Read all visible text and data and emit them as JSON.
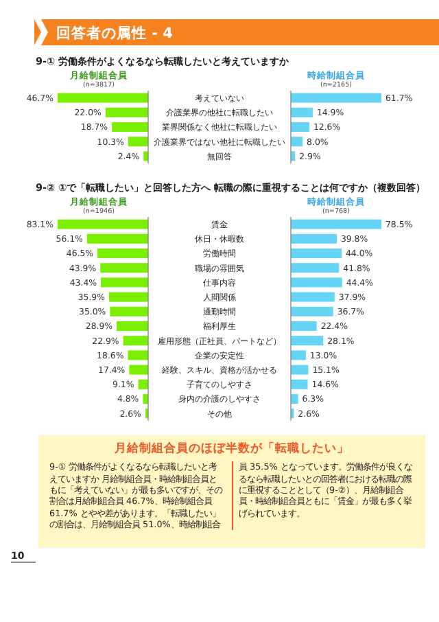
{
  "chart_data": [
    {
      "type": "other",
      "title": "回答者の属性 - 4"
    },
    {
      "type": "bar",
      "orientation": "horizontal",
      "title": "9-① 労働条件がよくなるなら転職したいと考えていますか",
      "categories": [
        "考えていない",
        "介護業界の他社に転職したい",
        "業界関係なく他社に転職したい",
        "介護業界ではない他社に転職したい",
        "無回答"
      ],
      "annotations": [
        "(n=3817)"
      ],
      "series": [
        {
          "name": "月給制組合員",
          "color": "#7af000",
          "values": [
            46.7,
            22.0,
            18.7,
            10.3,
            2.4
          ],
          "value_labels": [
            "46.7%",
            "22.0%",
            "18.7%",
            "10.3%",
            "2.4%"
          ]
        }
      ]
    },
    {
      "type": "bar",
      "orientation": "horizontal",
      "categories": [
        null,
        null,
        null,
        null,
        null
      ],
      "annotations": [
        "(n=2165)"
      ],
      "series": [
        {
          "name": "時給制組合員",
          "color": "#66d4f5",
          "values": [
            61.7,
            14.9,
            12.6,
            8.0,
            2.9
          ],
          "value_labels": [
            "61.7%",
            "14.9%",
            "12.6%",
            "8.0%",
            "2.9%"
          ]
        }
      ]
    },
    {
      "type": "bar",
      "orientation": "horizontal",
      "title": "9-② ①で「転職したい」と回答した方へ 転職の際に重視することは何ですか（複数回答）",
      "categories": [
        "賃金",
        "休日・休暇数",
        "労働時間",
        "職場の雰囲気",
        "仕事内容",
        "人間関係",
        "通勤時間",
        "福利厚生",
        "雇用形態（正社員、パートなど）",
        "企業の安定性",
        "経験、スキル、資格が活かせる",
        "子育てのしやすさ",
        "身内の介護のしやすさ",
        "その他"
      ],
      "annotations": [
        "(n=1946)"
      ],
      "series": [
        {
          "name": "月給制組合員",
          "color": "#7af000",
          "values": [
            83.1,
            56.1,
            46.5,
            43.9,
            43.4,
            35.9,
            35.0,
            28.9,
            22.9,
            18.6,
            17.4,
            9.1,
            4.8,
            2.6
          ],
          "value_labels": [
            "83.1%",
            "56.1%",
            "46.5%",
            "43.9%",
            "43.4%",
            "35.9%",
            "35.0%",
            "28.9%",
            "22.9%",
            "18.6%",
            "17.4%",
            "9.1%",
            "4.8%",
            "2.6%"
          ]
        }
      ]
    },
    {
      "type": "bar",
      "orientation": "horizontal",
      "categories": [
        null,
        null,
        null,
        null,
        null,
        null,
        null,
        null,
        null,
        null,
        null,
        null,
        null,
        null
      ],
      "annotations": [
        "(n=768)"
      ],
      "series": [
        {
          "name": "時給制組合員",
          "color": "#66d4f5",
          "values": [
            78.5,
            39.8,
            44.0,
            41.8,
            44.4,
            37.9,
            36.7,
            22.4,
            28.1,
            13.0,
            15.1,
            14.6,
            6.3,
            2.6
          ],
          "value_labels": [
            "78.5%",
            "39.8%",
            "44.0%",
            "41.8%",
            "44.4%",
            "37.9%",
            "36.7%",
            "22.4%",
            "28.1%",
            "13.0%",
            "15.1%",
            "14.6%",
            "6.3%",
            "2.6%"
          ]
        }
      ]
    },
    {
      "type": "other",
      "title": "月給制組合員のほぼ半数が「転職したい」",
      "annotations": [
        "9-① 労働条件がよくなるなら転職したいと考えていますか 月給制組合員・時給制組合員ともに「考えていない」が最も多いですが、その割合は月給制組合員 46.7%、時給制組合員 61.7% とやや差があります。「転職したい」の割合は、月給制組合員 51.0%、時給制組合員 35.5% となっています。労働条件が良くなるなら転職したいとの回答者における転職の際に重視することとして（9-②）、月給制組合員・時給制組合員ともに「賃金」が最も多く挙げられています。",
        "10"
      ]
    }
  ]
}
